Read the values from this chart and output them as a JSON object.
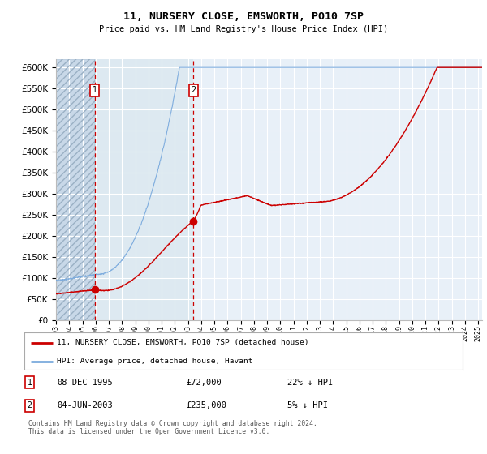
{
  "title": "11, NURSERY CLOSE, EMSWORTH, PO10 7SP",
  "subtitle": "Price paid vs. HM Land Registry's House Price Index (HPI)",
  "hpi_label": "HPI: Average price, detached house, Havant",
  "property_label": "11, NURSERY CLOSE, EMSWORTH, PO10 7SP (detached house)",
  "sale1_date": "08-DEC-1995",
  "sale1_price": 72000,
  "sale1_hpi": "22% ↓ HPI",
  "sale2_date": "04-JUN-2003",
  "sale2_price": 235000,
  "sale2_hpi": "5% ↓ HPI",
  "footer": "Contains HM Land Registry data © Crown copyright and database right 2024.\nThis data is licensed under the Open Government Licence v3.0.",
  "hatch_color": "#c8d8e8",
  "bg_color": "#dce8f0",
  "plot_bg": "#e8f0f8",
  "grid_color": "#ffffff",
  "red_line_color": "#cc0000",
  "blue_line_color": "#7aaadd",
  "dashed_line_color": "#cc0000",
  "ylim_min": 0,
  "ylim_max": 620000,
  "sale1_x": 1995.93,
  "sale2_x": 2003.42,
  "xmin": 1993,
  "xmax": 2025.3
}
